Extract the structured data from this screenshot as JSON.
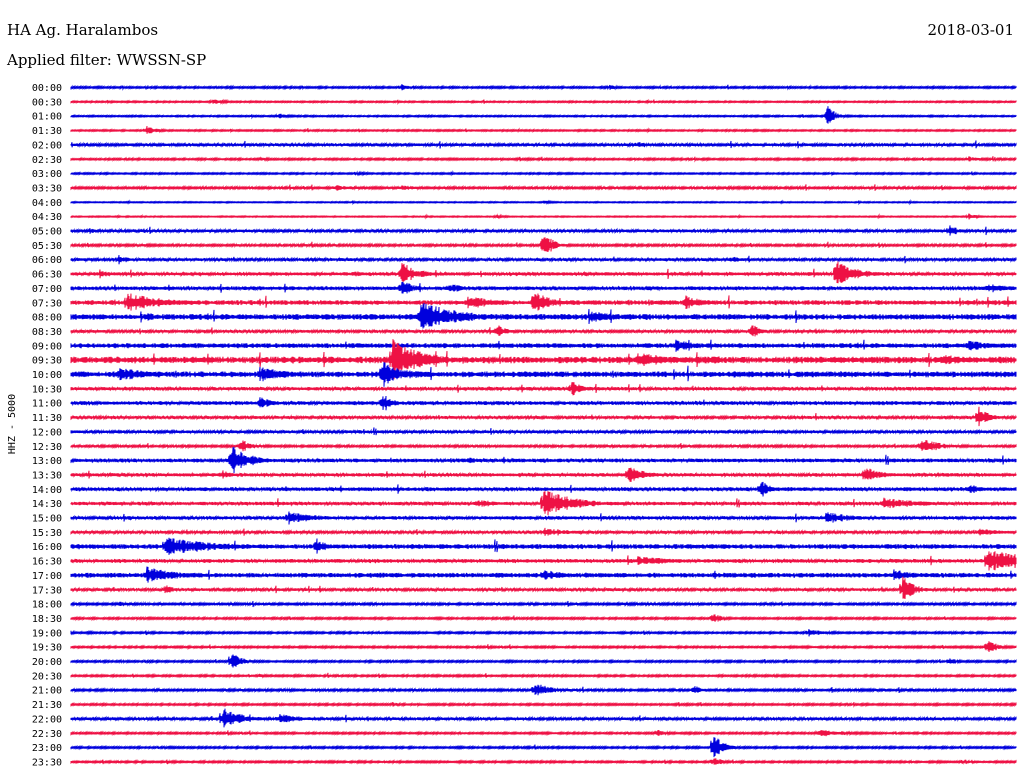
{
  "header": {
    "station": "HA Ag. Haralambos",
    "filter": "Applied filter: WWSSN-SP",
    "date": "2018-03-01"
  },
  "chart_data": {
    "type": "line",
    "title": "",
    "ylabel": "HHZ - 5000",
    "row_labels": [
      "00:00",
      "00:30",
      "01:00",
      "01:30",
      "02:00",
      "02:30",
      "03:00",
      "03:30",
      "04:00",
      "04:30",
      "05:00",
      "05:30",
      "06:00",
      "06:30",
      "07:00",
      "07:30",
      "08:00",
      "08:30",
      "09:00",
      "09:30",
      "10:00",
      "10:30",
      "11:00",
      "11:30",
      "12:00",
      "12:30",
      "13:00",
      "13:30",
      "14:00",
      "14:30",
      "15:00",
      "15:30",
      "16:00",
      "16:30",
      "17:00",
      "17:30",
      "18:00",
      "18:30",
      "19:00",
      "19:30",
      "20:00",
      "20:30",
      "21:00",
      "21:30",
      "22:00",
      "22:30",
      "23:00",
      "23:30"
    ],
    "trace_colors": [
      "#0000dd",
      "#ee1144"
    ],
    "row_noise": [
      1.0,
      0.8,
      0.8,
      0.8,
      1.5,
      1.0,
      0.8,
      1.2,
      0.6,
      0.6,
      1.5,
      1.2,
      1.5,
      1.8,
      2.0,
      2.5,
      3.0,
      1.5,
      2.5,
      3.5,
      3.0,
      1.8,
      2.0,
      1.5,
      1.5,
      1.2,
      2.0,
      1.8,
      2.0,
      1.8,
      1.8,
      1.5,
      2.5,
      2.0,
      2.5,
      1.5,
      1.2,
      1.0,
      1.0,
      1.0,
      1.0,
      1.0,
      1.2,
      1.0,
      1.5,
      1.0,
      1.0,
      1.0
    ],
    "events": [
      [
        [
          0.35,
          4,
          8
        ],
        [
          0.57,
          3,
          8
        ]
      ],
      [
        [
          0.15,
          3,
          14
        ]
      ],
      [
        [
          0.22,
          3,
          10
        ],
        [
          0.8,
          12,
          8
        ]
      ],
      [
        [
          0.08,
          5,
          10
        ]
      ],
      [
        [
          0.1,
          2,
          10
        ],
        [
          0.6,
          4,
          10
        ]
      ],
      [
        [
          0.2,
          2,
          10
        ],
        [
          0.95,
          3,
          12
        ]
      ],
      [
        [
          0.3,
          2,
          20
        ]
      ],
      [
        [
          0.28,
          3,
          30
        ],
        [
          0.35,
          3,
          20
        ]
      ],
      [
        [
          0.5,
          2,
          10
        ]
      ],
      [
        [
          0.45,
          2,
          10
        ],
        [
          0.95,
          4,
          8
        ]
      ],
      [
        [
          0.02,
          3,
          8
        ],
        [
          0.93,
          6,
          10
        ]
      ],
      [
        [
          0.5,
          14,
          10
        ]
      ],
      [
        [
          0.05,
          5,
          12
        ],
        [
          0.7,
          4,
          8
        ]
      ],
      [
        [
          0.03,
          5,
          10
        ],
        [
          0.35,
          12,
          18
        ],
        [
          0.3,
          4,
          10
        ],
        [
          0.81,
          14,
          22
        ]
      ],
      [
        [
          0.35,
          8,
          14
        ],
        [
          0.4,
          5,
          20
        ],
        [
          0.97,
          5,
          30
        ]
      ],
      [
        [
          0.06,
          10,
          40
        ],
        [
          0.42,
          8,
          25
        ],
        [
          0.49,
          14,
          15
        ],
        [
          0.65,
          8,
          20
        ]
      ],
      [
        [
          0.08,
          6,
          10
        ],
        [
          0.37,
          16,
          40
        ],
        [
          0.55,
          6,
          40
        ]
      ],
      [
        [
          0.45,
          8,
          10
        ],
        [
          0.72,
          8,
          10
        ]
      ],
      [
        [
          0.64,
          7,
          20
        ],
        [
          0.95,
          6,
          30
        ]
      ],
      [
        [
          0.34,
          22,
          30
        ],
        [
          0.6,
          8,
          40
        ],
        [
          0.92,
          8,
          20
        ]
      ],
      [
        [
          0.05,
          7,
          40
        ],
        [
          0.2,
          8,
          30
        ],
        [
          0.33,
          14,
          25
        ],
        [
          0.48,
          5,
          10
        ],
        [
          0.7,
          5,
          10
        ]
      ],
      [
        [
          0.53,
          8,
          14
        ]
      ],
      [
        [
          0.2,
          7,
          12
        ],
        [
          0.33,
          10,
          10
        ]
      ],
      [
        [
          0.96,
          12,
          10
        ]
      ],
      [
        [
          0.05,
          3,
          10
        ],
        [
          0.3,
          3,
          10
        ]
      ],
      [
        [
          0.18,
          8,
          10
        ],
        [
          0.9,
          8,
          20
        ]
      ],
      [
        [
          0.17,
          16,
          18
        ],
        [
          0.42,
          4,
          12
        ]
      ],
      [
        [
          0.16,
          5,
          10
        ],
        [
          0.59,
          9,
          18
        ],
        [
          0.84,
          9,
          16
        ]
      ],
      [
        [
          0.73,
          10,
          10
        ],
        [
          0.95,
          5,
          20
        ]
      ],
      [
        [
          0.43,
          5,
          20
        ],
        [
          0.5,
          16,
          30
        ],
        [
          0.86,
          6,
          40
        ]
      ],
      [
        [
          0.23,
          7,
          30
        ],
        [
          0.8,
          6,
          30
        ]
      ],
      [
        [
          0.5,
          5,
          30
        ],
        [
          0.96,
          5,
          20
        ]
      ],
      [
        [
          0.1,
          10,
          50
        ],
        [
          0.26,
          9,
          10
        ]
      ],
      [
        [
          0.6,
          5,
          40
        ],
        [
          0.97,
          12,
          50
        ]
      ],
      [
        [
          0.08,
          9,
          30
        ],
        [
          0.5,
          6,
          25
        ],
        [
          0.87,
          8,
          20
        ]
      ],
      [
        [
          0.1,
          5,
          10
        ],
        [
          0.88,
          14,
          12
        ]
      ],
      [
        [
          0.05,
          3,
          10
        ]
      ],
      [
        [
          0.68,
          7,
          8
        ]
      ],
      [
        [
          0.78,
          4,
          20
        ]
      ],
      [
        [
          0.97,
          8,
          10
        ]
      ],
      [
        [
          0.17,
          10,
          10
        ],
        [
          0.93,
          4,
          8
        ]
      ],
      [
        [
          0.2,
          2,
          10
        ]
      ],
      [
        [
          0.49,
          8,
          18
        ],
        [
          0.66,
          6,
          8
        ]
      ],
      [
        [
          0.34,
          3,
          8
        ]
      ],
      [
        [
          0.16,
          12,
          20
        ],
        [
          0.22,
          5,
          30
        ]
      ],
      [
        [
          0.62,
          4,
          10
        ],
        [
          0.79,
          4,
          30
        ]
      ],
      [
        [
          0.68,
          14,
          10
        ]
      ],
      [
        [
          0.68,
          5,
          10
        ]
      ]
    ]
  }
}
